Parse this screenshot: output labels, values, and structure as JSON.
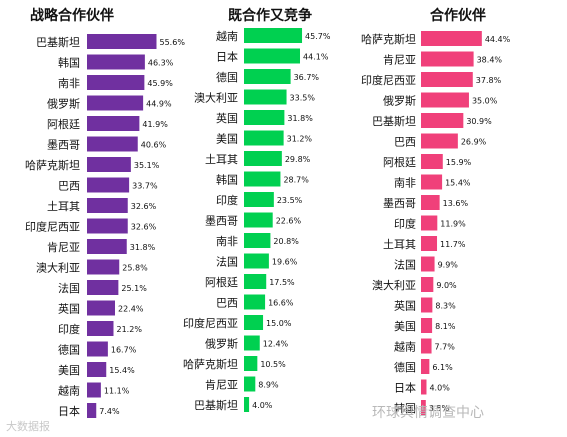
{
  "chart_data": [
    {
      "type": "bar",
      "orientation": "horizontal",
      "title": "战略合作伙伴",
      "color": "#7030A0",
      "categories": [
        "巴基斯坦",
        "韩国",
        "南非",
        "俄罗斯",
        "阿根廷",
        "墨西哥",
        "哈萨克斯坦",
        "巴西",
        "土耳其",
        "印度尼西亚",
        "肯尼亚",
        "澳大利亚",
        "法国",
        "英国",
        "印度",
        "德国",
        "美国",
        "越南",
        "日本"
      ],
      "values": [
        55.6,
        46.3,
        45.9,
        44.9,
        41.9,
        40.6,
        35.1,
        33.7,
        32.6,
        32.6,
        31.8,
        25.8,
        25.1,
        22.4,
        21.2,
        16.7,
        15.4,
        11.1,
        7.4
      ],
      "value_format": "percent_1dp",
      "grid": false,
      "legend": "none"
    },
    {
      "type": "bar",
      "orientation": "horizontal",
      "title": "既合作又竞争",
      "color": "#00D050",
      "categories": [
        "越南",
        "日本",
        "德国",
        "澳大利亚",
        "英国",
        "美国",
        "土耳其",
        "韩国",
        "印度",
        "墨西哥",
        "南非",
        "法国",
        "阿根廷",
        "巴西",
        "印度尼西亚",
        "俄罗斯",
        "哈萨克斯坦",
        "肯尼亚",
        "巴基斯坦"
      ],
      "values": [
        45.7,
        44.1,
        36.7,
        33.5,
        31.8,
        31.2,
        29.8,
        28.7,
        23.5,
        22.6,
        20.8,
        19.6,
        17.5,
        16.6,
        15.0,
        12.4,
        10.5,
        8.9,
        4.0
      ],
      "value_format": "percent_1dp",
      "grid": false,
      "legend": "none"
    },
    {
      "type": "bar",
      "orientation": "horizontal",
      "title": "合作伙伴",
      "color": "#F0407A",
      "categories": [
        "哈萨克斯坦",
        "肯尼亚",
        "印度尼西亚",
        "俄罗斯",
        "巴基斯坦",
        "巴西",
        "阿根廷",
        "南非",
        "墨西哥",
        "印度",
        "土耳其",
        "法国",
        "澳大利亚",
        "英国",
        "美国",
        "越南",
        "德国",
        "日本",
        "韩国"
      ],
      "values": [
        44.4,
        38.4,
        37.8,
        35.0,
        30.9,
        26.9,
        15.9,
        15.4,
        13.6,
        11.9,
        11.7,
        9.9,
        9.0,
        8.3,
        8.1,
        7.7,
        6.1,
        4.0,
        3.5
      ],
      "value_format": "percent_1dp",
      "grid": false,
      "legend": "none"
    }
  ],
  "watermarks": {
    "left": "大数据报",
    "right": "环球舆情调查中心"
  }
}
